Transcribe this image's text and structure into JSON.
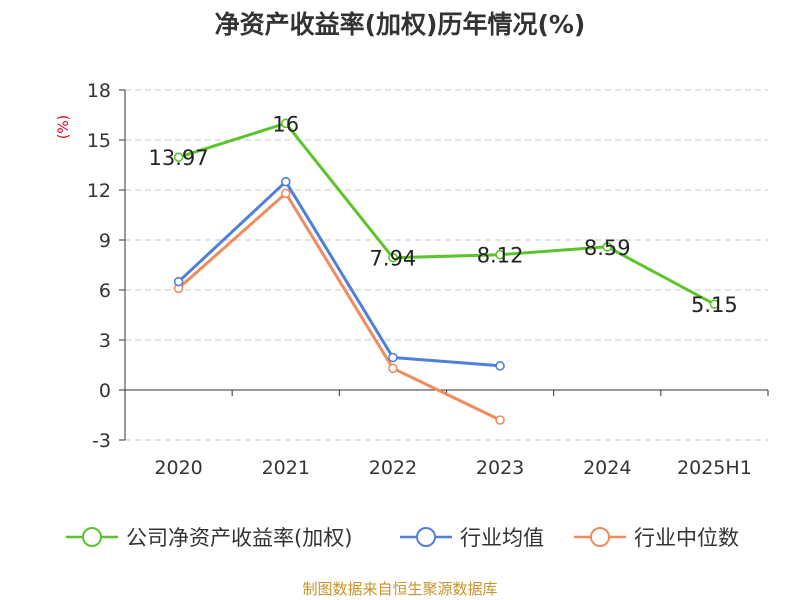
{
  "chart_data": {
    "type": "line",
    "title": "净资产收益率(加权)历年情况(%)",
    "ylabel": "(%)",
    "xlabel": "",
    "categories": [
      "2020",
      "2021",
      "2022",
      "2023",
      "2024",
      "2025H1"
    ],
    "ylim": [
      -3,
      18
    ],
    "yticks": [
      -3,
      0,
      3,
      6,
      9,
      12,
      15,
      18
    ],
    "grid": true,
    "legend_position": "bottom",
    "series": [
      {
        "name": "公司净资产收益率(加权)",
        "color": "#5bc42b",
        "values": [
          13.97,
          16,
          7.94,
          8.12,
          8.59,
          5.15
        ],
        "show_labels": true,
        "labels": [
          "13.97",
          "16",
          "7.94",
          "8.12",
          "8.59",
          "5.15"
        ]
      },
      {
        "name": "行业均值",
        "color": "#4f7fdb",
        "values": [
          6.5,
          12.5,
          1.95,
          1.45,
          null,
          null
        ],
        "show_labels": false
      },
      {
        "name": "行业中位数",
        "color": "#f28b5b",
        "values": [
          6.1,
          11.8,
          1.3,
          -1.8,
          null,
          null
        ],
        "show_labels": false
      }
    ]
  },
  "footer": {
    "source": "制图数据来自恒生聚源数据库"
  }
}
